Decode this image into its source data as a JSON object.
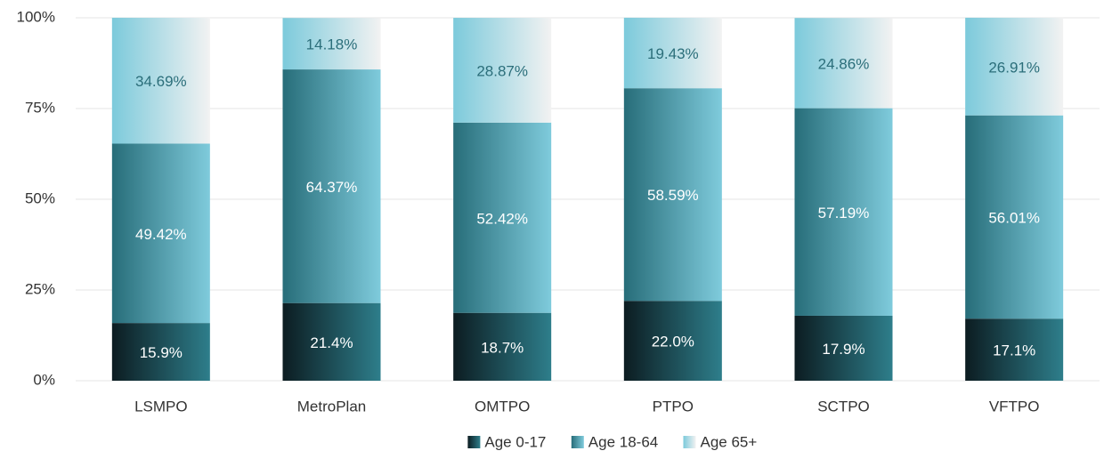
{
  "chart_data": {
    "type": "stacked_bar",
    "categories": [
      "LSMPO",
      "MetroPlan",
      "OMTPO",
      "PTPO",
      "SCTPO",
      "VFTPO"
    ],
    "series": [
      {
        "name": "Age 0-17",
        "gradient": [
          "#0c1c21",
          "#2e7e8b"
        ],
        "label_color": "#ffffff",
        "values": [
          15.9,
          21.4,
          18.7,
          22.0,
          17.9,
          17.1
        ],
        "value_labels": [
          "15.9%",
          "21.4%",
          "18.7%",
          "22.0%",
          "17.9%",
          "17.1%"
        ]
      },
      {
        "name": "Age 18-64",
        "gradient": [
          "#276d79",
          "#7fcbdc"
        ],
        "label_color": "#ffffff",
        "values": [
          49.42,
          64.37,
          52.42,
          58.59,
          57.19,
          56.01
        ],
        "value_labels": [
          "49.42%",
          "64.37%",
          "52.42%",
          "58.59%",
          "57.19%",
          "56.01%"
        ]
      },
      {
        "name": "Age 65+",
        "gradient": [
          "#7ccadb",
          "#f2f2f2"
        ],
        "label_color": "#2b6e7a",
        "values": [
          34.69,
          14.18,
          28.87,
          19.43,
          24.86,
          26.91
        ],
        "value_labels": [
          "34.69%",
          "14.18%",
          "28.87%",
          "19.43%",
          "24.86%",
          "26.91%"
        ]
      }
    ],
    "ylim": [
      0,
      100
    ],
    "yticks": [
      {
        "value": 0,
        "label": "0%"
      },
      {
        "value": 25,
        "label": "25%"
      },
      {
        "value": 50,
        "label": "50%"
      },
      {
        "value": 75,
        "label": "75%"
      },
      {
        "value": 100,
        "label": "100%"
      }
    ],
    "grid": true,
    "legend": "bottom"
  }
}
